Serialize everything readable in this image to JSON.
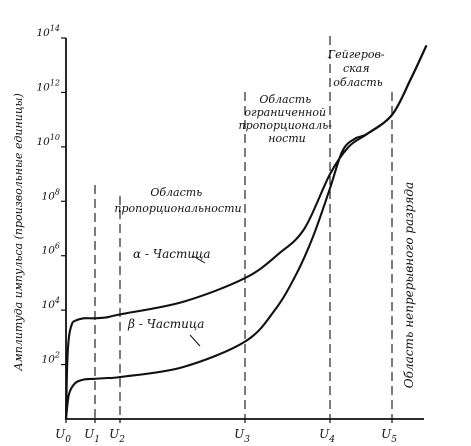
{
  "chart_data": {
    "type": "line",
    "ylabel": "Амплитуда импульса (произвольные единицы)",
    "y_scale": "log",
    "ylim": [
      1,
      100000000000000
    ],
    "y_ticks": [
      {
        "value": 100,
        "base": "10",
        "exp": "2"
      },
      {
        "value": 10000,
        "base": "10",
        "exp": "4"
      },
      {
        "value": 1000000,
        "base": "10",
        "exp": "6"
      },
      {
        "value": 100000000,
        "base": "10",
        "exp": "8"
      },
      {
        "value": 10000000000,
        "base": "10",
        "exp": "10"
      },
      {
        "value": 1000000000000,
        "base": "10",
        "exp": "12"
      },
      {
        "value": 100000000000000,
        "base": "10",
        "exp": "14"
      }
    ],
    "voltage_marks": [
      {
        "id": "u0",
        "label": "U",
        "sub": "0",
        "x": 0,
        "dashed": false
      },
      {
        "id": "u1",
        "label": "U",
        "sub": "1",
        "x": 1,
        "dashed": true
      },
      {
        "id": "u2",
        "label": "U",
        "sub": "2",
        "x": 2,
        "dashed": true
      },
      {
        "id": "u3",
        "label": "U",
        "sub": "3",
        "x": 3,
        "dashed": true
      },
      {
        "id": "u4",
        "label": "U",
        "sub": "4",
        "x": 4,
        "dashed": true
      },
      {
        "id": "u5",
        "label": "U",
        "sub": "5",
        "x": 5,
        "dashed": true
      }
    ],
    "series": [
      {
        "name": "α - Частица",
        "points": [
          [
            0,
            1
          ],
          [
            0.04,
            100
          ],
          [
            0.1,
            1000
          ],
          [
            0.2,
            3000
          ],
          [
            0.3,
            4000
          ],
          [
            0.6,
            5000
          ],
          [
            1.0,
            5000
          ],
          [
            1.5,
            5500
          ],
          [
            2.0,
            7000
          ],
          [
            2.5,
            20000
          ],
          [
            3.0,
            150000
          ],
          [
            3.4,
            1200000
          ],
          [
            3.7,
            10000000
          ],
          [
            4.0,
            1000000000
          ],
          [
            4.3,
            10000000000
          ],
          [
            4.6,
            30000000000
          ],
          [
            5.0,
            150000000000
          ],
          [
            5.3,
            3000000000000
          ],
          [
            5.55,
            50000000000000
          ]
        ]
      },
      {
        "name": "β - Частица",
        "points": [
          [
            0,
            1
          ],
          [
            0.1,
            8
          ],
          [
            0.3,
            20
          ],
          [
            0.6,
            28
          ],
          [
            1.0,
            30
          ],
          [
            1.5,
            32
          ],
          [
            2.0,
            35
          ],
          [
            2.5,
            80
          ],
          [
            3.0,
            700
          ],
          [
            3.35,
            10000
          ],
          [
            3.6,
            200000
          ],
          [
            3.8,
            5000000
          ],
          [
            4.0,
            300000000
          ],
          [
            4.2,
            7000000000
          ],
          [
            4.4,
            20000000000
          ],
          [
            4.6,
            30000000000
          ],
          [
            5.0,
            150000000000
          ],
          [
            5.3,
            3000000000000
          ],
          [
            5.55,
            50000000000000
          ]
        ]
      }
    ],
    "annotations": [
      {
        "id": "prop",
        "lines": [
          "Область",
          "пропорциональности"
        ]
      },
      {
        "id": "limited",
        "lines": [
          "Область",
          "ограниченной",
          "пропорциональ-",
          "ности"
        ]
      },
      {
        "id": "geiger",
        "lines": [
          "Гейгеров-",
          "ская",
          "область"
        ]
      },
      {
        "id": "discharge",
        "lines": [
          "Область непрерывного разряда"
        ]
      }
    ]
  }
}
